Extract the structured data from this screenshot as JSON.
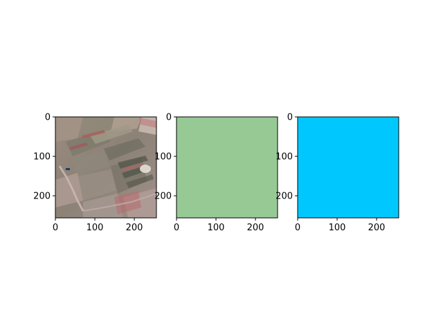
{
  "chart_data": [
    {
      "type": "image",
      "content": "aerial-farmland-image",
      "xlim": [
        0,
        256
      ],
      "ylim": [
        256,
        0
      ],
      "xticks": [
        0,
        100,
        200
      ],
      "yticks": [
        0,
        100,
        200
      ],
      "xtick_labels": [
        "0",
        "100",
        "200"
      ],
      "ytick_labels": [
        "0",
        "100",
        "200"
      ]
    },
    {
      "type": "image",
      "content": "solid-fill",
      "fill_color": "#97c995",
      "xlim": [
        0,
        256
      ],
      "ylim": [
        256,
        0
      ],
      "xticks": [
        0,
        100,
        200
      ],
      "yticks": [
        0,
        100,
        200
      ],
      "xtick_labels": [
        "0",
        "100",
        "200"
      ],
      "ytick_labels": [
        "0",
        "100",
        "200"
      ]
    },
    {
      "type": "image",
      "content": "solid-fill",
      "fill_color": "#00c8ff",
      "xlim": [
        0,
        256
      ],
      "ylim": [
        256,
        0
      ],
      "xticks": [
        0,
        100,
        200
      ],
      "yticks": [
        0,
        100,
        200
      ],
      "xtick_labels": [
        "0",
        "100",
        "200"
      ],
      "ytick_labels": [
        "0",
        "100",
        "200"
      ]
    }
  ]
}
